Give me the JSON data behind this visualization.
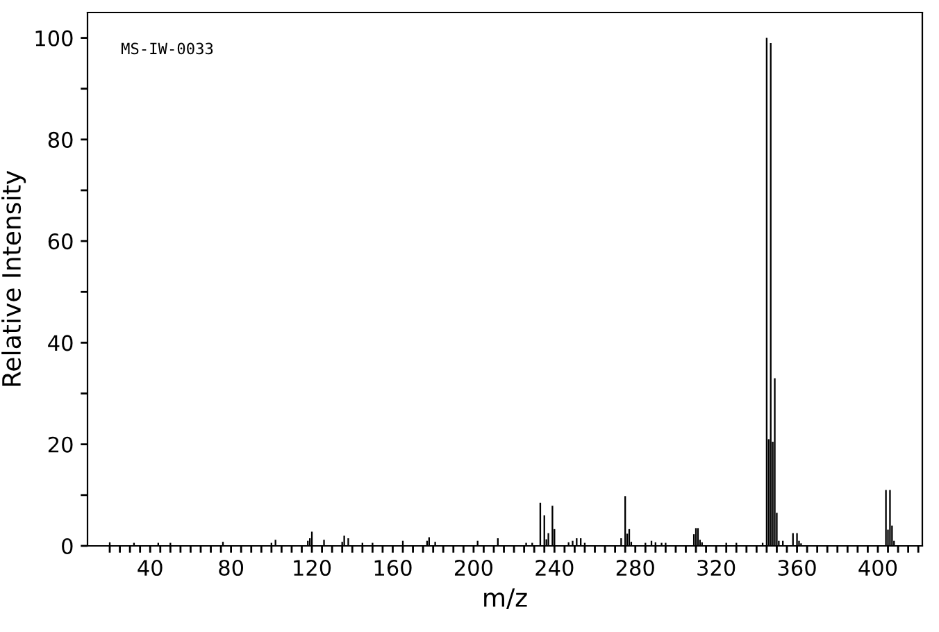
{
  "chart_data": {
    "type": "bar",
    "xlabel": "m/z",
    "ylabel": "Relative Intensity",
    "color": "#000000",
    "annotations": [
      "MS-IW-0033"
    ],
    "x": [
      20,
      32,
      44,
      50,
      76,
      100,
      102,
      118,
      119,
      120,
      126,
      135,
      136,
      138,
      145,
      150,
      165,
      177,
      178,
      181,
      202,
      212,
      226,
      229,
      233,
      235,
      236,
      237,
      239,
      240,
      247,
      249,
      251,
      253,
      255,
      273,
      275,
      276,
      277,
      278,
      285,
      288,
      290,
      293,
      295,
      309,
      310,
      311,
      312,
      313,
      325,
      330,
      343,
      345,
      346,
      347,
      348,
      349,
      350,
      351,
      353,
      358,
      360,
      361,
      362,
      404,
      405,
      406,
      407,
      408
    ],
    "values": [
      0.7,
      0.6,
      0.6,
      0.6,
      0.8,
      0.6,
      1.2,
      1,
      1.5,
      2.8,
      1.2,
      0.8,
      2,
      1.5,
      0.6,
      0.6,
      1,
      1,
      1.7,
      0.8,
      1,
      1.5,
      0.6,
      0.6,
      8.5,
      6,
      1.3,
      2.5,
      7.9,
      3.3,
      0.7,
      1,
      1.5,
      1.5,
      0.6,
      1.5,
      9.8,
      2.4,
      3.3,
      0.8,
      0.6,
      1,
      0.7,
      0.6,
      0.6,
      2.3,
      3.5,
      3.5,
      1.2,
      0.7,
      0.6,
      0.6,
      0.6,
      100,
      21,
      99,
      20.5,
      33,
      6.5,
      1,
      1,
      2.5,
      2.5,
      1,
      0.5,
      11,
      3.2,
      11,
      4,
      1
    ],
    "xlim": [
      9,
      422
    ],
    "xticks": [
      {
        "value": 20,
        "label": null
      },
      {
        "value": 25,
        "label": null
      },
      {
        "value": 30,
        "label": null
      },
      {
        "value": 35,
        "label": null
      },
      40,
      {
        "value": 45,
        "label": null
      },
      {
        "value": 50,
        "label": null
      },
      {
        "value": 55,
        "label": null
      },
      {
        "value": 60,
        "label": null
      },
      {
        "value": 65,
        "label": null
      },
      {
        "value": 70,
        "label": null
      },
      {
        "value": 75,
        "label": null
      },
      80,
      {
        "value": 85,
        "label": null
      },
      {
        "value": 90,
        "label": null
      },
      {
        "value": 95,
        "label": null
      },
      {
        "value": 100,
        "label": null
      },
      {
        "value": 105,
        "label": null
      },
      {
        "value": 110,
        "label": null
      },
      {
        "value": 115,
        "label": null
      },
      120,
      {
        "value": 125,
        "label": null
      },
      {
        "value": 130,
        "label": null
      },
      {
        "value": 135,
        "label": null
      },
      {
        "value": 140,
        "label": null
      },
      {
        "value": 145,
        "label": null
      },
      {
        "value": 150,
        "label": null
      },
      {
        "value": 155,
        "label": null
      },
      160,
      {
        "value": 165,
        "label": null
      },
      {
        "value": 170,
        "label": null
      },
      {
        "value": 175,
        "label": null
      },
      {
        "value": 180,
        "label": null
      },
      {
        "value": 185,
        "label": null
      },
      {
        "value": 190,
        "label": null
      },
      {
        "value": 195,
        "label": null
      },
      200,
      {
        "value": 205,
        "label": null
      },
      {
        "value": 210,
        "label": null
      },
      {
        "value": 215,
        "label": null
      },
      {
        "value": 220,
        "label": null
      },
      {
        "value": 225,
        "label": null
      },
      {
        "value": 230,
        "label": null
      },
      {
        "value": 235,
        "label": null
      },
      240,
      {
        "value": 245,
        "label": null
      },
      {
        "value": 250,
        "label": null
      },
      {
        "value": 255,
        "label": null
      },
      {
        "value": 260,
        "label": null
      },
      {
        "value": 265,
        "label": null
      },
      {
        "value": 270,
        "label": null
      },
      {
        "value": 275,
        "label": null
      },
      280,
      {
        "value": 285,
        "label": null
      },
      {
        "value": 290,
        "label": null
      },
      {
        "value": 295,
        "label": null
      },
      {
        "value": 300,
        "label": null
      },
      {
        "value": 305,
        "label": null
      },
      {
        "value": 310,
        "label": null
      },
      {
        "value": 315,
        "label": null
      },
      320,
      {
        "value": 325,
        "label": null
      },
      {
        "value": 330,
        "label": null
      },
      {
        "value": 335,
        "label": null
      },
      {
        "value": 340,
        "label": null
      },
      {
        "value": 345,
        "label": null
      },
      {
        "value": 350,
        "label": null
      },
      {
        "value": 355,
        "label": null
      },
      360,
      {
        "value": 365,
        "label": null
      },
      {
        "value": 370,
        "label": null
      },
      {
        "value": 375,
        "label": null
      },
      {
        "value": 380,
        "label": null
      },
      {
        "value": 385,
        "label": null
      },
      {
        "value": 390,
        "label": null
      },
      {
        "value": 395,
        "label": null
      },
      400,
      {
        "value": 405,
        "label": null
      },
      {
        "value": 410,
        "label": null
      },
      {
        "value": 415,
        "label": null
      },
      {
        "value": 420,
        "label": null
      }
    ],
    "ylim": [
      0,
      105
    ],
    "yticks": [
      0,
      {
        "value": 10,
        "label": null
      },
      20,
      {
        "value": 30,
        "label": null
      },
      40,
      {
        "value": 50,
        "label": null
      },
      60,
      {
        "value": 70,
        "label": null
      },
      80,
      {
        "value": 90,
        "label": null
      },
      100
    ],
    "grid": false,
    "legend": false
  }
}
